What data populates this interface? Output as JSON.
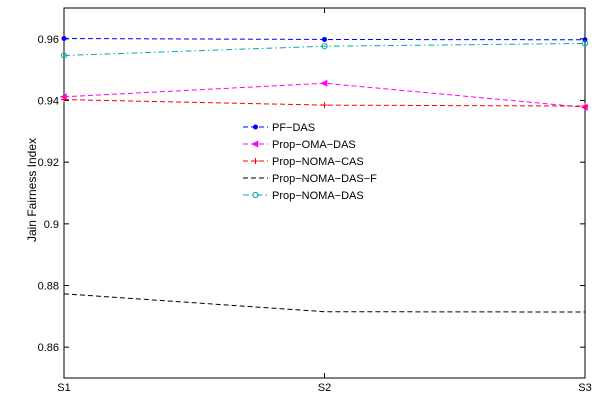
{
  "chart_data": {
    "type": "line",
    "title": "",
    "xlabel": "",
    "ylabel": "Jain Fairness Index",
    "categories": [
      "S1",
      "S2",
      "S3"
    ],
    "ylim": [
      0.85,
      0.97
    ],
    "yticks": [
      0.86,
      0.88,
      0.9,
      0.92,
      0.94,
      0.96
    ],
    "ytick_labels": [
      "0.86",
      "0.88",
      "0.9",
      "0.92",
      "0.94",
      "0.96"
    ],
    "grid": false,
    "legend_position": "center",
    "series": [
      {
        "name": "PF−DAS",
        "values": [
          0.9601,
          0.9598,
          0.9597
        ],
        "color": "#0000ff",
        "dash": "dashed",
        "marker": "dot"
      },
      {
        "name": "Prop−OMA−DAS",
        "values": [
          0.9412,
          0.9456,
          0.9378
        ],
        "color": "#ff00ff",
        "dash": "dashed",
        "marker": "triangle-left"
      },
      {
        "name": "Prop−NOMA−CAS",
        "values": [
          0.9403,
          0.9385,
          0.9382
        ],
        "color": "#ff0000",
        "dash": "dashed",
        "marker": "plus"
      },
      {
        "name": "Prop−NOMA−DAS−F",
        "values": [
          0.8773,
          0.8715,
          0.8714
        ],
        "color": "#000000",
        "dash": "dashed",
        "marker": "none"
      },
      {
        "name": "Prop−NOMA−DAS",
        "values": [
          0.9546,
          0.9576,
          0.9585
        ],
        "color": "#00aaaa",
        "dash": "dashdot",
        "marker": "circle"
      }
    ]
  }
}
